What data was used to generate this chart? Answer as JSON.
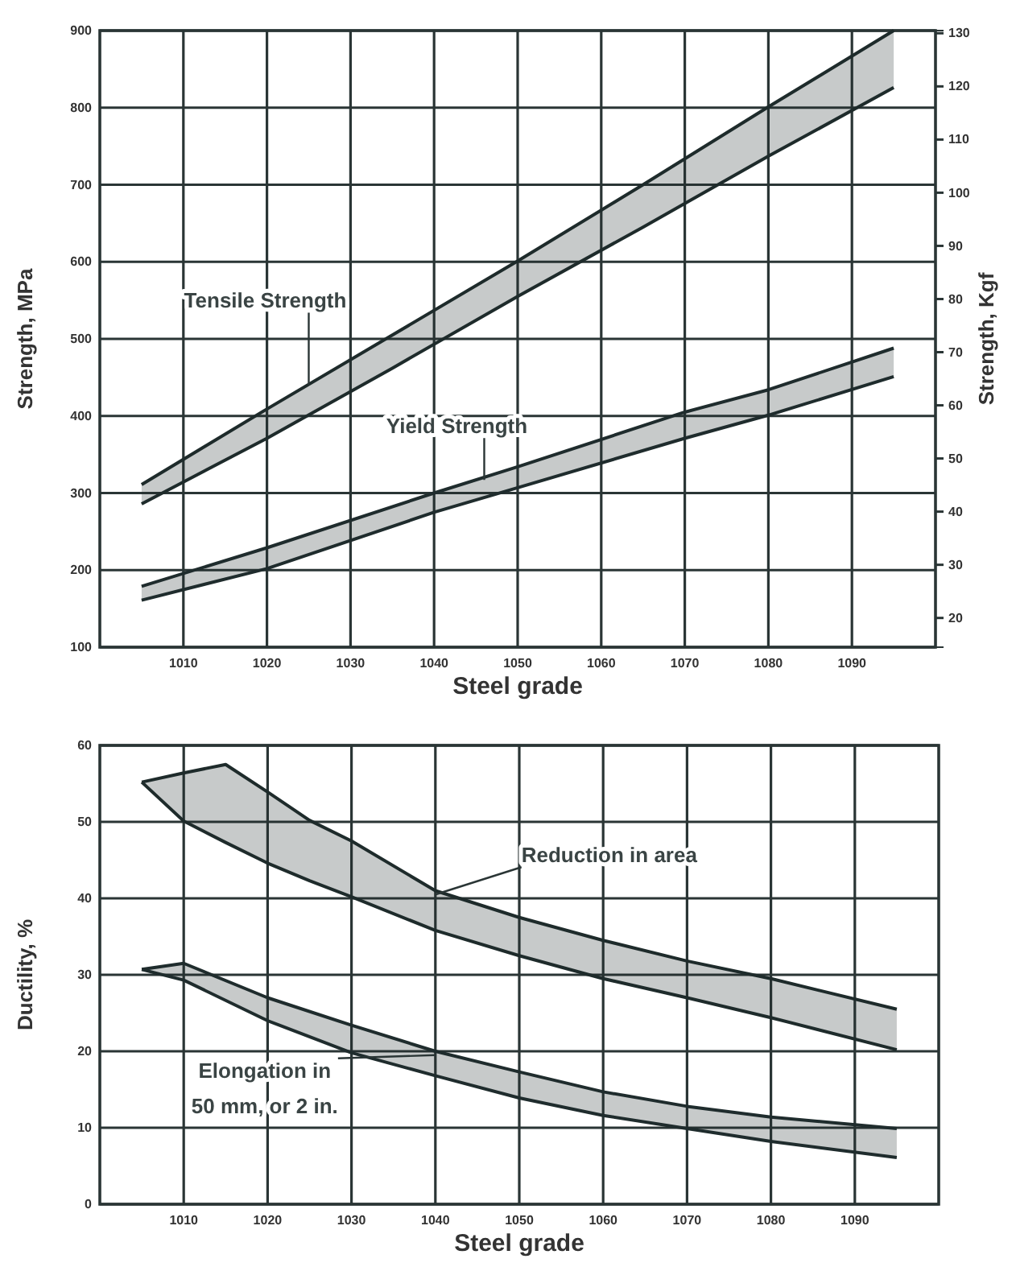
{
  "chart_data": [
    {
      "type": "line",
      "xlabel": "Steel grade",
      "ylabel": "Strength, MPa",
      "y2label": "Strength, Kgf",
      "xlim": [
        1000,
        1100
      ],
      "xticks": [
        1010,
        1020,
        1030,
        1040,
        1050,
        1060,
        1070,
        1080,
        1090
      ],
      "ylim": [
        100,
        900
      ],
      "yticks": [
        100,
        200,
        300,
        400,
        500,
        600,
        700,
        800,
        900
      ],
      "y2lim": [
        14.5,
        130.5
      ],
      "y2ticks": [
        20,
        30,
        40,
        50,
        60,
        70,
        80,
        90,
        100,
        110,
        120,
        130
      ],
      "grid": true,
      "series": [
        {
          "color": "#1e2b2b",
          "x": [
            1005,
            1020,
            1035,
            1050,
            1065,
            1080,
            1095
          ],
          "values": [
            311,
            409,
            505,
            601,
            700,
            801,
            900
          ],
          "lower": [
            286,
            371,
            462,
            555,
            645,
            737,
            826
          ],
          "upper": [
            311,
            409,
            505,
            601,
            700,
            801,
            900
          ]
        },
        {
          "color": "#1e2b2b",
          "x": [
            1005,
            1020,
            1035,
            1050,
            1065,
            1080,
            1095
          ],
          "values": [
            286,
            371,
            462,
            555,
            645,
            737,
            826
          ]
        },
        {
          "color": "#1f2c2d",
          "x": [
            1005,
            1020,
            1040,
            1050,
            1070,
            1080,
            1095
          ],
          "values": [
            179,
            229,
            300,
            334,
            405,
            434,
            488
          ],
          "lower": [
            161,
            202,
            275,
            307,
            371,
            401,
            451
          ],
          "upper": [
            179,
            229,
            300,
            334,
            405,
            434,
            488
          ]
        },
        {
          "color": "#1f2c2d",
          "x": [
            1005,
            1020,
            1040,
            1050,
            1070,
            1080,
            1095
          ],
          "values": [
            161,
            202,
            275,
            307,
            371,
            401,
            451
          ]
        }
      ],
      "annotations": [
        {
          "text": "Tensile Strength",
          "x": 1025,
          "y": 440
        },
        {
          "text": "Yield Strength",
          "x": 1046,
          "y": 317
        }
      ]
    },
    {
      "type": "line",
      "xlabel": "Steel grade",
      "ylabel": "Ductility, %",
      "xlim": [
        1000,
        1100
      ],
      "xticks": [
        1010,
        1020,
        1030,
        1040,
        1050,
        1060,
        1070,
        1080,
        1090
      ],
      "ylim": [
        0,
        60
      ],
      "yticks": [
        0,
        10,
        20,
        30,
        40,
        50,
        60
      ],
      "grid": true,
      "series": [
        {
          "color": "#1e2b2b",
          "x": [
            1005,
            1010,
            1015,
            1020,
            1025,
            1030,
            1040,
            1050,
            1060,
            1070,
            1080,
            1095
          ],
          "values": [
            55.2,
            56.4,
            57.5,
            53.9,
            50.2,
            47.5,
            41,
            37.5,
            34.5,
            31.8,
            29.5,
            25.5
          ],
          "lower": [
            55.2,
            50.1,
            47.3,
            44.6,
            42.3,
            40.2,
            35.8,
            32.5,
            29.5,
            27,
            24.4,
            20.2
          ],
          "upper": [
            55.2,
            56.4,
            57.5,
            53.9,
            50.2,
            47.5,
            41,
            37.5,
            34.5,
            31.8,
            29.5,
            25.5
          ]
        },
        {
          "color": "#1e2b2b",
          "x": [
            1005,
            1010,
            1015,
            1020,
            1025,
            1030,
            1040,
            1050,
            1060,
            1070,
            1080,
            1095
          ],
          "values": [
            55.2,
            50.1,
            47.3,
            44.6,
            42.3,
            40.2,
            35.8,
            32.5,
            29.5,
            27,
            24.4,
            20.2
          ]
        },
        {
          "color": "#1f2c2d",
          "x": [
            1005,
            1010,
            1020,
            1030,
            1040,
            1050,
            1060,
            1070,
            1080,
            1095
          ],
          "values": [
            30.7,
            31.5,
            27,
            23.4,
            20,
            17.3,
            14.7,
            12.8,
            11.4,
            9.9
          ],
          "lower": [
            30.7,
            29.3,
            24,
            19.8,
            16.8,
            13.9,
            11.6,
            9.9,
            8.2,
            6.1
          ],
          "upper": [
            30.7,
            31.5,
            27,
            23.4,
            20,
            17.3,
            14.7,
            12.8,
            11.4,
            9.9
          ]
        },
        {
          "color": "#1f2c2d",
          "x": [
            1005,
            1010,
            1020,
            1030,
            1040,
            1050,
            1060,
            1070,
            1080,
            1095
          ],
          "values": [
            30.7,
            29.3,
            24,
            19.8,
            16.8,
            13.9,
            11.6,
            9.9,
            8.2,
            6.1
          ]
        }
      ],
      "annotations": [
        {
          "text": "Reduction in area",
          "x": 1040,
          "y": 40.5
        },
        {
          "text": "Elongation in\n50 mm, or 2 in.",
          "x": 1040,
          "y": 19.5
        }
      ]
    }
  ]
}
